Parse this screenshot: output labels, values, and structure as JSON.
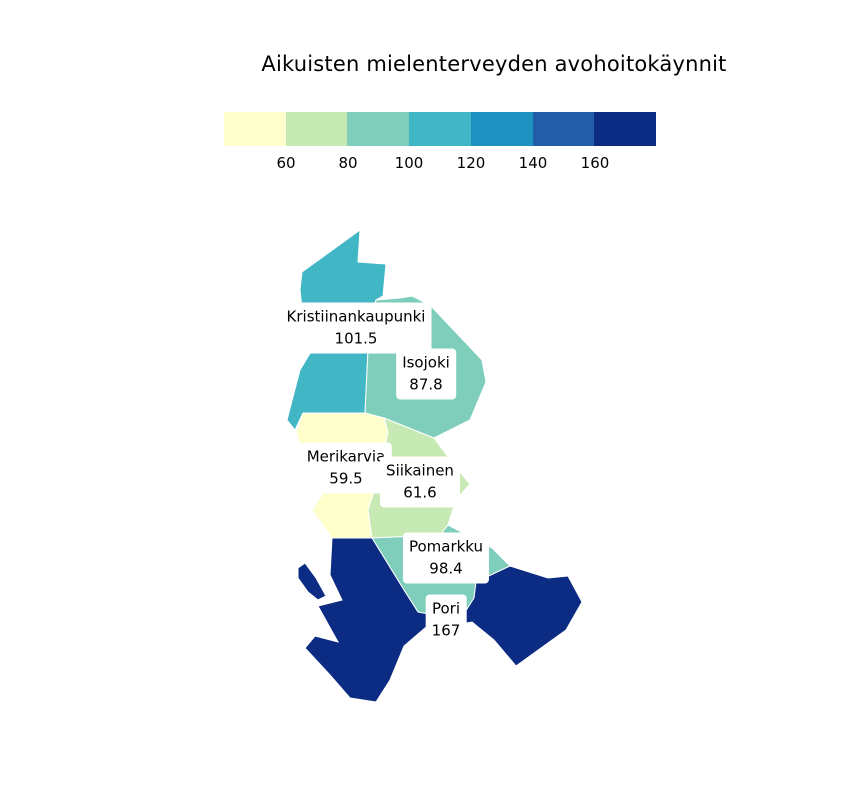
{
  "title": "Aikuisten mielenterveyden avohoitokäynnit",
  "legend": {
    "colors": [
      "#ffffcc",
      "#c7e9b4",
      "#7fcdbb",
      "#41b6c4",
      "#1d91c0",
      "#225ea8",
      "#0c2c84"
    ],
    "ticks": [
      "60",
      "80",
      "100",
      "120",
      "140",
      "160"
    ]
  },
  "municipalities": [
    {
      "name": "Kristiinankaupunki",
      "value": "101.5",
      "color": "#41b6c4"
    },
    {
      "name": "Isojoki",
      "value": "87.8",
      "color": "#7fcdbb"
    },
    {
      "name": "Merikarvia",
      "value": "59.5",
      "color": "#ffffcc"
    },
    {
      "name": "Siikainen",
      "value": "61.6",
      "color": "#c7e9b4"
    },
    {
      "name": "Pomarkku",
      "value": "98.4",
      "color": "#7fcdbb"
    },
    {
      "name": "Pori",
      "value": "167",
      "color": "#0c2c84"
    }
  ]
}
